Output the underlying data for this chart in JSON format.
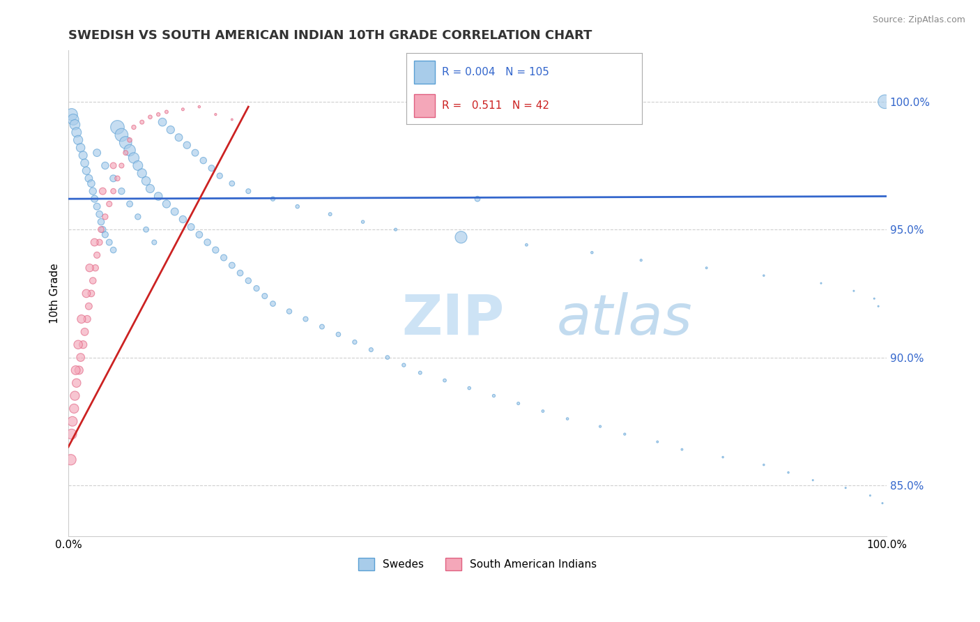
{
  "title": "SWEDISH VS SOUTH AMERICAN INDIAN 10TH GRADE CORRELATION CHART",
  "source": "Source: ZipAtlas.com",
  "ylabel": "10th Grade",
  "legend_blue_label": "Swedes",
  "legend_pink_label": "South American Indians",
  "r_blue": "0.004",
  "n_blue": "105",
  "r_pink": "0.511",
  "n_pink": "42",
  "blue_color": "#A8CCEA",
  "blue_edge": "#5A9FD4",
  "pink_color": "#F4A7B9",
  "pink_edge": "#E06080",
  "trend_blue_color": "#3366CC",
  "trend_pink_color": "#CC2222",
  "watermark_main": "#C8E0F4",
  "watermark_alt": "#BCD8EE",
  "swedes_x": [
    0.4,
    0.6,
    0.8,
    1.0,
    1.2,
    1.5,
    1.8,
    2.0,
    2.2,
    2.5,
    2.8,
    3.0,
    3.2,
    3.5,
    3.8,
    4.0,
    4.2,
    4.5,
    5.0,
    5.5,
    6.0,
    6.5,
    7.0,
    7.5,
    8.0,
    8.5,
    9.0,
    9.5,
    10.0,
    11.0,
    12.0,
    13.0,
    14.0,
    15.0,
    16.0,
    17.0,
    18.0,
    19.0,
    20.0,
    21.0,
    22.0,
    23.0,
    24.0,
    25.0,
    27.0,
    29.0,
    31.0,
    33.0,
    35.0,
    37.0,
    39.0,
    41.0,
    43.0,
    46.0,
    49.0,
    52.0,
    55.0,
    58.0,
    61.0,
    65.0,
    68.0,
    72.0,
    75.0,
    80.0,
    85.0,
    88.0,
    91.0,
    95.0,
    98.0,
    99.5,
    3.5,
    4.5,
    5.5,
    6.5,
    7.5,
    8.5,
    9.5,
    10.5,
    11.5,
    12.5,
    13.5,
    14.5,
    15.5,
    16.5,
    17.5,
    18.5,
    20.0,
    22.0,
    25.0,
    28.0,
    32.0,
    36.0,
    40.0,
    48.0,
    56.0,
    64.0,
    70.0,
    78.0,
    85.0,
    92.0,
    96.0,
    98.5,
    99.0,
    99.8,
    50.0
  ],
  "swedes_y": [
    99.5,
    99.3,
    99.1,
    98.8,
    98.5,
    98.2,
    97.9,
    97.6,
    97.3,
    97.0,
    96.8,
    96.5,
    96.2,
    95.9,
    95.6,
    95.3,
    95.0,
    94.8,
    94.5,
    94.2,
    99.0,
    98.7,
    98.4,
    98.1,
    97.8,
    97.5,
    97.2,
    96.9,
    96.6,
    96.3,
    96.0,
    95.7,
    95.4,
    95.1,
    94.8,
    94.5,
    94.2,
    93.9,
    93.6,
    93.3,
    93.0,
    92.7,
    92.4,
    92.1,
    91.8,
    91.5,
    91.2,
    90.9,
    90.6,
    90.3,
    90.0,
    89.7,
    89.4,
    89.1,
    88.8,
    88.5,
    88.2,
    87.9,
    87.6,
    87.3,
    87.0,
    86.7,
    86.4,
    86.1,
    85.8,
    85.5,
    85.2,
    84.9,
    84.6,
    84.3,
    98.0,
    97.5,
    97.0,
    96.5,
    96.0,
    95.5,
    95.0,
    94.5,
    99.2,
    98.9,
    98.6,
    98.3,
    98.0,
    97.7,
    97.4,
    97.1,
    96.8,
    96.5,
    96.2,
    95.9,
    95.6,
    95.3,
    95.0,
    94.7,
    94.4,
    94.1,
    93.8,
    93.5,
    93.2,
    92.9,
    92.6,
    92.3,
    92.0,
    100.0,
    96.2
  ],
  "swedes_size": [
    150,
    130,
    110,
    100,
    90,
    80,
    75,
    70,
    65,
    60,
    58,
    55,
    52,
    50,
    48,
    46,
    44,
    42,
    40,
    38,
    200,
    180,
    160,
    140,
    120,
    100,
    90,
    80,
    75,
    70,
    65,
    60,
    55,
    50,
    48,
    46,
    44,
    42,
    40,
    38,
    36,
    34,
    32,
    30,
    28,
    26,
    24,
    22,
    20,
    18,
    16,
    14,
    12,
    11,
    10,
    9,
    8,
    7,
    6,
    5,
    5,
    4,
    4,
    3,
    3,
    3,
    2,
    2,
    2,
    2,
    60,
    55,
    50,
    45,
    40,
    35,
    30,
    25,
    70,
    65,
    60,
    55,
    50,
    45,
    40,
    35,
    30,
    25,
    20,
    15,
    12,
    10,
    8,
    150,
    7,
    6,
    5,
    4,
    3,
    2,
    2,
    2,
    2,
    200,
    30
  ],
  "indians_x": [
    0.3,
    0.5,
    0.7,
    1.0,
    1.3,
    1.5,
    1.8,
    2.0,
    2.3,
    2.5,
    2.8,
    3.0,
    3.3,
    3.5,
    3.8,
    4.0,
    4.5,
    5.0,
    5.5,
    6.0,
    6.5,
    7.0,
    7.5,
    8.0,
    9.0,
    10.0,
    11.0,
    12.0,
    14.0,
    16.0,
    18.0,
    20.0,
    0.8,
    1.2,
    2.2,
    3.2,
    4.2,
    5.5,
    0.4,
    0.9,
    1.6,
    2.6
  ],
  "indians_y": [
    86.0,
    87.5,
    88.0,
    89.0,
    89.5,
    90.0,
    90.5,
    91.0,
    91.5,
    92.0,
    92.5,
    93.0,
    93.5,
    94.0,
    94.5,
    95.0,
    95.5,
    96.0,
    96.5,
    97.0,
    97.5,
    98.0,
    98.5,
    99.0,
    99.2,
    99.4,
    99.5,
    99.6,
    99.7,
    99.8,
    99.5,
    99.3,
    88.5,
    90.5,
    92.5,
    94.5,
    96.5,
    97.5,
    87.0,
    89.5,
    91.5,
    93.5
  ],
  "indians_size": [
    120,
    100,
    90,
    80,
    75,
    70,
    65,
    60,
    55,
    50,
    48,
    46,
    44,
    42,
    40,
    38,
    35,
    33,
    30,
    28,
    26,
    24,
    22,
    20,
    18,
    16,
    14,
    12,
    8,
    6,
    5,
    4,
    90,
    80,
    70,
    60,
    50,
    40,
    110,
    85,
    75,
    65
  ],
  "xlim": [
    0,
    100
  ],
  "ylim": [
    83.0,
    102.0
  ],
  "ytick_vals": [
    85.0,
    90.0,
    95.0,
    100.0
  ],
  "ytick_labels": [
    "85.0%",
    "90.0%",
    "95.0%",
    "100.0%"
  ],
  "blue_trend_x": [
    0,
    100
  ],
  "blue_trend_y": [
    96.2,
    96.3
  ],
  "pink_trend_x": [
    0,
    22
  ],
  "pink_trend_y": [
    86.5,
    99.8
  ]
}
